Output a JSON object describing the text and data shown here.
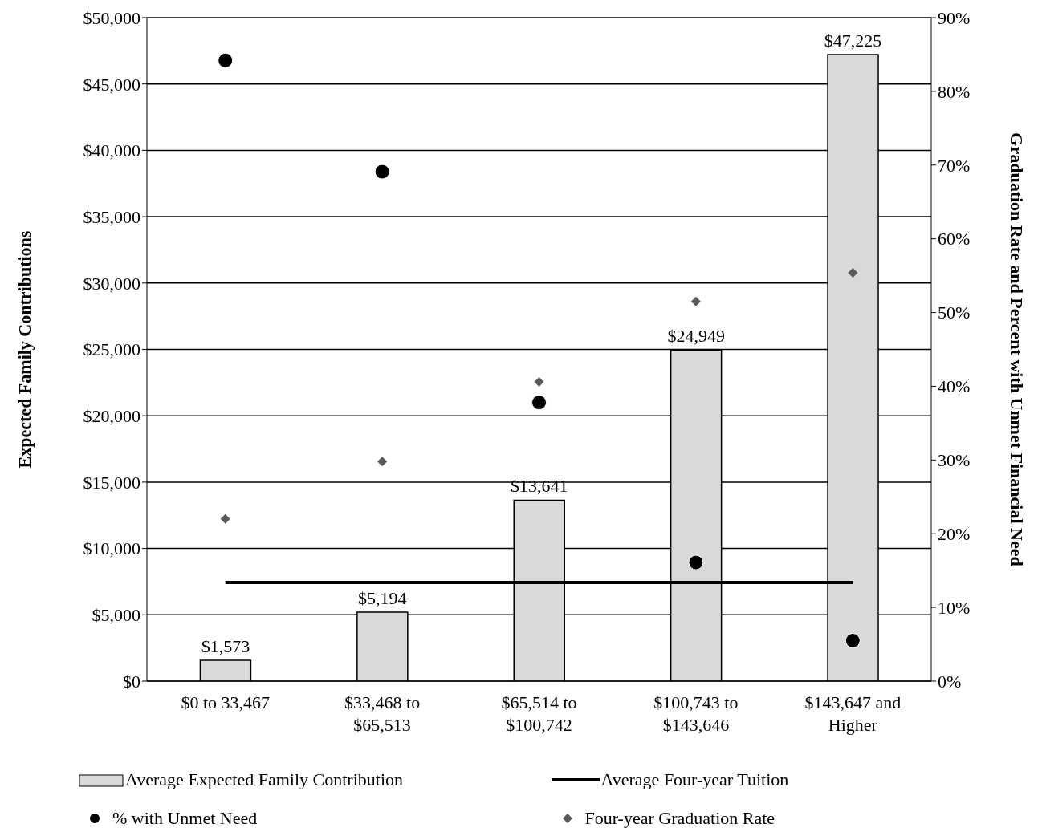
{
  "chart_data": {
    "type": "bar",
    "categories": [
      "$0 to 33,467",
      "$33,468 to $65,513",
      "$65,514 to $100,742",
      "$100,743 to $143,646",
      "$143,647 and Higher"
    ],
    "ylabel": "Expected Family Contributions",
    "y2label": "Graduation Rate and Percent with Unmet Financial Need",
    "ylim": [
      0,
      50000
    ],
    "yticks": [
      {
        "value": 0,
        "label": "$0"
      },
      {
        "value": 5000,
        "label": "$5,000"
      },
      {
        "value": 10000,
        "label": "$10,000"
      },
      {
        "value": 15000,
        "label": "$15,000"
      },
      {
        "value": 20000,
        "label": "$20,000"
      },
      {
        "value": 25000,
        "label": "$25,000"
      },
      {
        "value": 30000,
        "label": "$30,000"
      },
      {
        "value": 35000,
        "label": "$35,000"
      },
      {
        "value": 40000,
        "label": "$40,000"
      },
      {
        "value": 45000,
        "label": "$45,000"
      },
      {
        "value": 50000,
        "label": "$50,000"
      }
    ],
    "y2lim": [
      0,
      90
    ],
    "y2ticks": [
      {
        "value": 0,
        "label": "0%"
      },
      {
        "value": 10,
        "label": "10%"
      },
      {
        "value": 20,
        "label": "20%"
      },
      {
        "value": 30,
        "label": "30%"
      },
      {
        "value": 40,
        "label": "40%"
      },
      {
        "value": 50,
        "label": "50%"
      },
      {
        "value": 60,
        "label": "60%"
      },
      {
        "value": 70,
        "label": "70%"
      },
      {
        "value": 80,
        "label": "80%"
      },
      {
        "value": 90,
        "label": "90%"
      }
    ],
    "grid": "y",
    "legend": "bottom",
    "series": [
      {
        "name": "Average Expected Family Contribution",
        "color": "#d9d9d9",
        "values": [
          1573,
          5194,
          13641,
          24949,
          47225
        ],
        "value_labels": [
          "$1,573",
          "$5,194",
          "$13,641",
          "$24,949",
          "$47,225"
        ]
      },
      {
        "name": "Average Four-year Tuition",
        "type": "line",
        "color": "#000000",
        "values": [
          7440,
          7440,
          7440,
          7440,
          7440
        ]
      },
      {
        "name": "% with Unmet Need",
        "type": "scatter",
        "axis": "y2",
        "marker": "circle",
        "color": "#000000",
        "values": [
          84.2,
          69.1,
          37.8,
          16.1,
          5.5
        ]
      },
      {
        "name": "Four-year Graduation Rate",
        "type": "scatter",
        "axis": "y2",
        "marker": "diamond",
        "color": "#595959",
        "values": [
          22.0,
          29.8,
          40.6,
          51.5,
          55.4
        ]
      }
    ]
  }
}
